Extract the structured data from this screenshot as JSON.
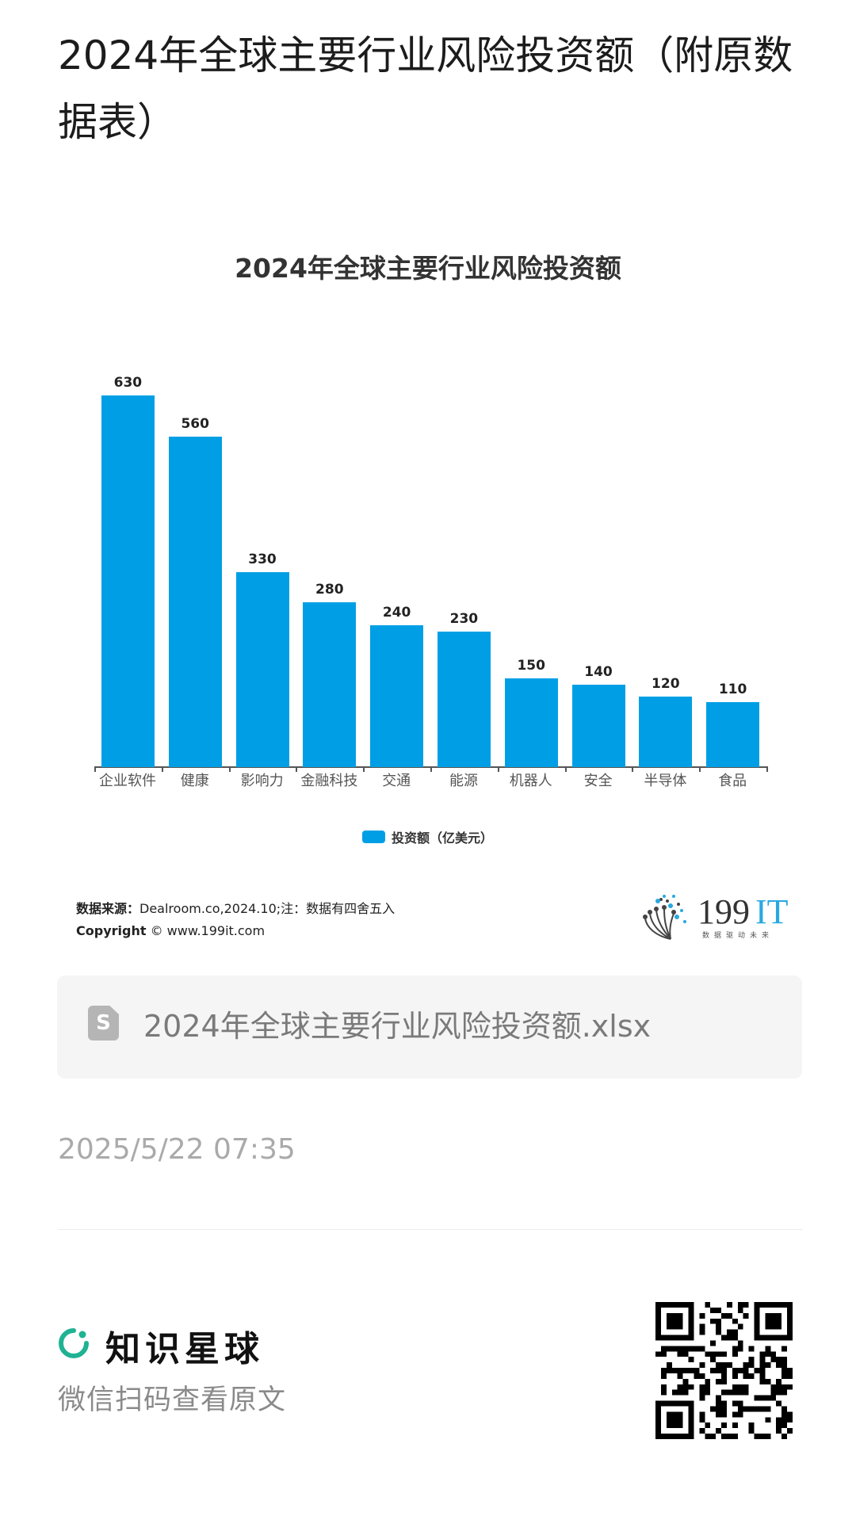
{
  "page": {
    "title": "2024年全球主要行业风险投资额（附原数据表）"
  },
  "chart_data": {
    "type": "bar",
    "title": "2024年全球主要行业风险投资额",
    "categories": [
      "企业软件",
      "健康",
      "影响力",
      "金融科技",
      "交通",
      "能源",
      "机器人",
      "安全",
      "半导体",
      "食品"
    ],
    "series": [
      {
        "name": "投资额（亿美元）",
        "values": [
          630,
          560,
          330,
          280,
          240,
          230,
          150,
          140,
          120,
          110
        ],
        "color": "#009fe5"
      }
    ],
    "values": [
      630,
      560,
      330,
      280,
      240,
      230,
      150,
      140,
      120,
      110
    ],
    "value_labels": [
      "630",
      "560",
      "330",
      "280",
      "240",
      "230",
      "150",
      "140",
      "120",
      "110"
    ],
    "xlabel": "",
    "ylabel": "",
    "ylim": [
      0,
      630
    ],
    "grid": false,
    "legend_position": "bottom",
    "legend": [
      "投资额（亿美元）"
    ]
  },
  "chart_footer": {
    "source_label": "数据来源：",
    "source_text": "Dealroom.co,2024.10;注：数据有四舍五入",
    "copyright_label": "Copyright",
    "copyright_text": "© www.199it.com",
    "logo_text": "199",
    "logo_accent": "IT",
    "logo_slogan": "数据驱动未来"
  },
  "attachment": {
    "icon": "spreadsheet-file-icon",
    "icon_letter": "S",
    "file_name": "2024年全球主要行业风险投资额.xlsx"
  },
  "meta": {
    "timestamp": "2025/5/22 07:35"
  },
  "footer": {
    "brand_name": "知识星球",
    "brand_color": "#1fb293",
    "scan_prompt": "微信扫码查看原文",
    "qr_icon": "qr-code-icon"
  },
  "colors": {
    "bar": "#009fe5",
    "title": "#1c1c1c",
    "muted": "#aaaaaa"
  }
}
